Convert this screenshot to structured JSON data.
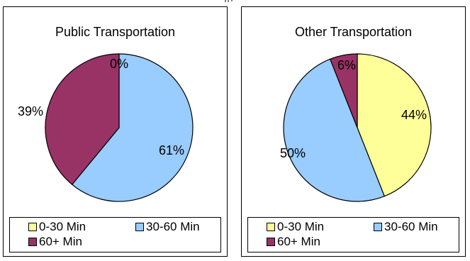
{
  "colors": {
    "c0_30": "#FFFF99",
    "c30_60": "#99CCFF",
    "c60_plus": "#993366"
  },
  "legend_labels": [
    "0-30 Min",
    "30-60 Min",
    "60+ Min"
  ],
  "chart_data": [
    {
      "type": "pie",
      "title": "Public Transportation",
      "categories": [
        "0-30 Min",
        "30-60 Min",
        "60+ Min"
      ],
      "values": [
        0,
        61,
        39
      ],
      "data_labels": [
        "0%",
        "61%",
        "39%"
      ],
      "legend_placement": "bottom"
    },
    {
      "type": "pie",
      "title": "Other Transportation",
      "categories": [
        "0-30 Min",
        "30-60 Min",
        "60+ Min"
      ],
      "values": [
        44,
        50,
        6
      ],
      "data_labels": [
        "44%",
        "50%",
        "6%"
      ],
      "legend_placement": "bottom"
    }
  ]
}
